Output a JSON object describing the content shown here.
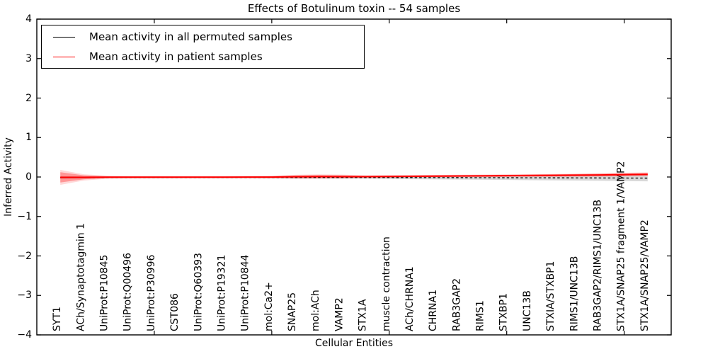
{
  "figure": {
    "title": "Effects of Botulinum toxin -- 54 samples",
    "xlabel": "Cellular Entities",
    "ylabel": "Inferred Activity"
  },
  "legend": {
    "items": [
      {
        "label": "Mean activity in all permuted samples",
        "color": "#000000"
      },
      {
        "label": "Mean activity in patient samples",
        "color": "#ff0000"
      }
    ]
  },
  "chart_data": {
    "type": "line",
    "title": "Effects of Botulinum toxin -- 54 samples",
    "xlabel": "Cellular Entities",
    "ylabel": "Inferred Activity",
    "ylim": [
      -4,
      4
    ],
    "yticks": [
      {
        "value": 4,
        "label": "4"
      },
      {
        "value": 3,
        "label": "3"
      },
      {
        "value": 2,
        "label": "2"
      },
      {
        "value": 1,
        "label": "1"
      },
      {
        "value": 0,
        "label": "0"
      },
      {
        "value": -1,
        "label": "−1"
      },
      {
        "value": -2,
        "label": "−2"
      },
      {
        "value": -3,
        "label": "−3"
      },
      {
        "value": -4,
        "label": "−4"
      }
    ],
    "xtick_positions": [
      5,
      10,
      15,
      20,
      25
    ],
    "grid": false,
    "legend_position": "upper left",
    "categories": [
      "SYT1",
      "ACh/Synaptotagmin 1",
      "UniProt:P10845",
      "UniProt:Q00496",
      "UniProt:P30996",
      "CST086",
      "UniProt:Q60393",
      "UniProt:P19321",
      "UniProt:P10844",
      "mol:Ca2+",
      "SNAP25",
      "mol:ACh",
      "VAMP2",
      "STX1A",
      "muscle contraction",
      "ACh/CHRNA1",
      "CHRNA1",
      "RAB3GAP2",
      "RIMS1",
      "STXBP1",
      "UNC13B",
      "STXIA/STXBP1",
      "RIMS1/UNC13B",
      "RAB3GAP2/RIMS1/UNC13B",
      "STX1A/SNAP25 fragment 1/VAMP2",
      "STX1A/SNAP25/VAMP2"
    ],
    "series": [
      {
        "name": "Mean activity in all permuted samples",
        "color": "#000000",
        "style": "dashed",
        "values": [
          -0.015,
          -0.012,
          -0.01,
          -0.01,
          -0.01,
          -0.01,
          -0.01,
          -0.01,
          -0.01,
          -0.011,
          -0.012,
          -0.012,
          -0.012,
          -0.013,
          -0.014,
          -0.015,
          -0.016,
          -0.017,
          -0.018,
          -0.019,
          -0.02,
          -0.021,
          -0.022,
          -0.024,
          -0.026,
          -0.028
        ]
      },
      {
        "name": "Mean activity in patient samples",
        "color": "#ff0000",
        "style": "solid",
        "values": [
          -0.01,
          -0.008,
          -0.005,
          -0.005,
          -0.005,
          -0.004,
          -0.004,
          -0.004,
          -0.003,
          -0.002,
          0.006,
          0.012,
          0.01,
          0.01,
          0.014,
          0.018,
          0.022,
          0.026,
          0.03,
          0.034,
          0.038,
          0.042,
          0.046,
          0.052,
          0.06,
          0.068
        ]
      }
    ],
    "bands": [
      {
        "name": "permuted-confidence-band",
        "color": "#000000",
        "opacity": 0.15,
        "upper": [
          0.02,
          0.015,
          0.012,
          0.012,
          0.012,
          0.012,
          0.012,
          0.012,
          0.012,
          0.014,
          0.016,
          0.016,
          0.016,
          0.018,
          0.022,
          0.026,
          0.029,
          0.032,
          0.035,
          0.038,
          0.04,
          0.042,
          0.044,
          0.047,
          0.05,
          0.052
        ],
        "lower": [
          -0.05,
          -0.04,
          -0.032,
          -0.032,
          -0.032,
          -0.032,
          -0.032,
          -0.032,
          -0.032,
          -0.035,
          -0.04,
          -0.04,
          -0.04,
          -0.044,
          -0.05,
          -0.055,
          -0.06,
          -0.065,
          -0.07,
          -0.075,
          -0.08,
          -0.085,
          -0.09,
          -0.096,
          -0.103,
          -0.11
        ]
      },
      {
        "name": "patient-confidence-band-outer",
        "color": "#ff0000",
        "opacity": 0.15,
        "upper": [
          0.18,
          0.07,
          0.032,
          0.025,
          0.024,
          0.023,
          0.022,
          0.022,
          0.024,
          0.03,
          0.055,
          0.068,
          0.06,
          0.042,
          0.046,
          0.05,
          0.054,
          0.058,
          0.062,
          0.067,
          0.073,
          0.08,
          0.087,
          0.096,
          0.107,
          0.118
        ],
        "lower": [
          -0.2,
          -0.09,
          -0.042,
          -0.035,
          -0.034,
          -0.032,
          -0.031,
          -0.031,
          -0.03,
          -0.034,
          -0.042,
          -0.04,
          -0.038,
          -0.022,
          -0.018,
          -0.014,
          -0.01,
          -0.006,
          -0.002,
          0.002,
          0.004,
          0.006,
          0.008,
          0.012,
          0.018,
          0.024
        ]
      },
      {
        "name": "patient-confidence-band-inner",
        "color": "#ff0000",
        "opacity": 0.3,
        "upper": [
          0.12,
          0.042,
          0.02,
          0.015,
          0.015,
          0.015,
          0.015,
          0.015,
          0.016,
          0.02,
          0.04,
          0.05,
          0.044,
          0.032,
          0.036,
          0.04,
          0.044,
          0.048,
          0.052,
          0.056,
          0.062,
          0.068,
          0.074,
          0.082,
          0.092,
          0.102
        ],
        "lower": [
          -0.14,
          -0.058,
          -0.03,
          -0.025,
          -0.025,
          -0.023,
          -0.023,
          -0.023,
          -0.022,
          -0.024,
          -0.028,
          -0.026,
          -0.024,
          -0.012,
          -0.008,
          -0.004,
          0.0,
          0.004,
          0.008,
          0.012,
          0.014,
          0.016,
          0.018,
          0.022,
          0.028,
          0.034
        ]
      }
    ]
  }
}
